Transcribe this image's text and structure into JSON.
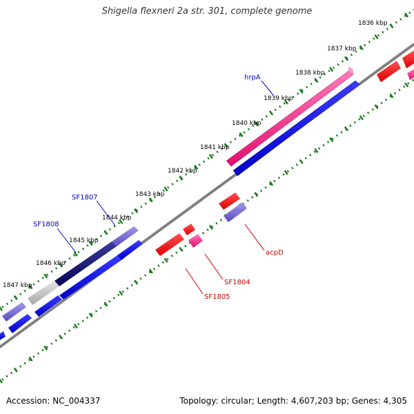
{
  "title": "Shigella flexneri 2a str. 301, complete genome",
  "footer": {
    "accession": "Accession: NC_004337",
    "summary": "Topology: circular; Length: 4,607,203 bp; Genes: 4,305"
  },
  "colors": {
    "backbone": "#7a7a7a",
    "tick_dots": "#1a7a1a",
    "gene_red": "#ff0000",
    "gene_pink": "#ff2a8c",
    "gene_blue": "#0000ee",
    "gene_lavender": "#7a6ad8",
    "gene_navy": "#0a0a6a",
    "gene_gray": "#c8c8c8",
    "label_blue": "#0000cc",
    "label_red": "#cc0000"
  },
  "ticks": [
    {
      "label": "1836 kbp",
      "kbp": 1836
    },
    {
      "label": "1837 kbp",
      "kbp": 1837
    },
    {
      "label": "1838 kbp",
      "kbp": 1838
    },
    {
      "label": "1839 kbp",
      "kbp": 1839
    },
    {
      "label": "1840 kbp",
      "kbp": 1840
    },
    {
      "label": "1841 kbp",
      "kbp": 1841
    },
    {
      "label": "1842 kbp",
      "kbp": 1842
    },
    {
      "label": "1843 kbp",
      "kbp": 1843
    },
    {
      "label": "1844 kbp",
      "kbp": 1844
    },
    {
      "label": "1845 kbp",
      "kbp": 1845
    },
    {
      "label": "1846 kbp",
      "kbp": 1846
    },
    {
      "label": "1847 kbp",
      "kbp": 1847
    }
  ],
  "gene_labels": [
    {
      "id": "hrpA",
      "text": "hrpA",
      "color": "label_blue"
    },
    {
      "id": "SF1807",
      "text": "SF1807",
      "color": "label_blue"
    },
    {
      "id": "SF1808",
      "text": "SF1808",
      "color": "label_blue"
    },
    {
      "id": "acpD",
      "text": "acpD",
      "color": "label_red"
    },
    {
      "id": "SF1804",
      "text": "SF1804",
      "color": "label_red"
    },
    {
      "id": "SF1805",
      "text": "SF1805",
      "color": "label_red"
    }
  ]
}
